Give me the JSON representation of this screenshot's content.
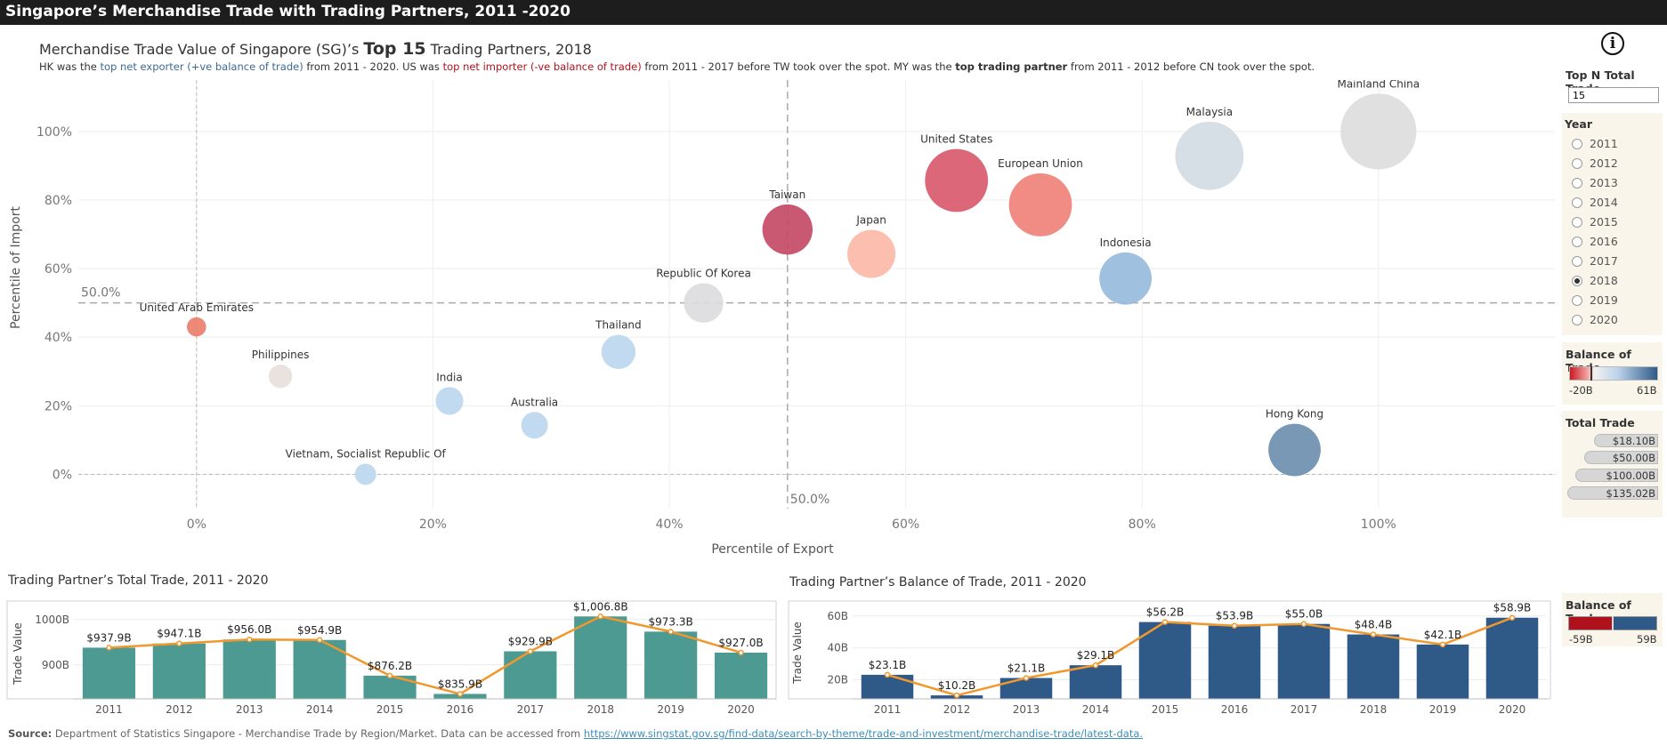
{
  "header": {
    "title": "Singapore’s Merchandise Trade with Trading Partners, 2011 -2020"
  },
  "main": {
    "title_prefix": "Merchandise Trade Value of Singapore (SG)’s ",
    "title_bold": "Top 15",
    "title_suffix": " Trading Partners, 2018",
    "subtitle_1": "HK was the ",
    "subtitle_2": "top net exporter (+ve balance of trade)",
    "subtitle_3": " from 2011 - 2020. US was ",
    "subtitle_4": "top net importer (-ve balance of trade)",
    "subtitle_5": " from 2011 - 2017 before TW took over the spot. MY was the ",
    "subtitle_6": "top trading partner",
    "subtitle_7": " from 2011 - 2012 before CN took over the spot."
  },
  "info_icon": "i",
  "controls": {
    "topn_label": "Top N Total Trade",
    "topn_value": "15",
    "year_label": "Year",
    "years": [
      "2011",
      "2012",
      "2013",
      "2014",
      "2015",
      "2016",
      "2017",
      "2018",
      "2019",
      "2020"
    ],
    "selected_year": "2018",
    "bot_legend_label": "Balance of Trade",
    "bot_min": "-20B",
    "bot_max": "61B",
    "total_trade_label": "Total Trade",
    "total_trade_sizes": [
      "$18.10B",
      "$50.00B",
      "$100.00B",
      "$135.02B"
    ],
    "bot2_label": "Balance of Trade",
    "bot2_min": "-59B",
    "bot2_max": "59B"
  },
  "colors": {
    "accent_line": "#f0982d",
    "teal_bar": "#4c9a91",
    "navy_bar": "#2f5a88"
  },
  "chart_data": [
    {
      "type": "scatter",
      "title": "",
      "xlabel": "Percentile of Export",
      "ylabel": "Percentile of Import",
      "xlim": [
        -0.1,
        1.15
      ],
      "ylim": [
        -0.1,
        1.15
      ],
      "xticks": [
        "0%",
        "20%",
        "40%",
        "60%",
        "80%",
        "100%"
      ],
      "yticks": [
        "0%",
        "20%",
        "40%",
        "60%",
        "80%",
        "100%"
      ],
      "ref_x_label": "50.0%",
      "ref_y_label": "50.0%",
      "points": [
        {
          "label": "United Arab Emirates",
          "x": 0.0,
          "y": 0.43,
          "size": 18,
          "color": "#eb7f6c"
        },
        {
          "label": "Philippines",
          "x": 0.071,
          "y": 0.286,
          "size": 22,
          "color": "#e7dfdc"
        },
        {
          "label": "India",
          "x": 0.214,
          "y": 0.214,
          "size": 26,
          "color": "#bcd7ee"
        },
        {
          "label": "Australia",
          "x": 0.286,
          "y": 0.143,
          "size": 25,
          "color": "#bcd7ee"
        },
        {
          "label": "Vietnam, Socialist Republic Of",
          "x": 0.143,
          "y": 0.0,
          "size": 20,
          "color": "#bcd7ee"
        },
        {
          "label": "Thailand",
          "x": 0.357,
          "y": 0.357,
          "size": 32,
          "color": "#bcd7ee"
        },
        {
          "label": "Republic Of Korea",
          "x": 0.429,
          "y": 0.5,
          "size": 37,
          "color": "#dcdcdf"
        },
        {
          "label": "Taiwan",
          "x": 0.5,
          "y": 0.714,
          "size": 47,
          "color": "#c44a66"
        },
        {
          "label": "Japan",
          "x": 0.571,
          "y": 0.643,
          "size": 45,
          "color": "#fbb8a8"
        },
        {
          "label": "United States",
          "x": 0.643,
          "y": 0.857,
          "size": 59,
          "color": "#d95a6c"
        },
        {
          "label": "European Union",
          "x": 0.714,
          "y": 0.786,
          "size": 59,
          "color": "#ef8278"
        },
        {
          "label": "Indonesia",
          "x": 0.786,
          "y": 0.571,
          "size": 49,
          "color": "#97bcdc"
        },
        {
          "label": "Malaysia",
          "x": 0.857,
          "y": 0.929,
          "size": 64,
          "color": "#d4dce4"
        },
        {
          "label": "Mainland China",
          "x": 1.0,
          "y": 1.0,
          "size": 71,
          "color": "#dedddd"
        },
        {
          "label": "Hong Kong",
          "x": 0.929,
          "y": 0.071,
          "size": 49,
          "color": "#6c8fb0"
        }
      ]
    },
    {
      "type": "bar",
      "title": "Trading Partner’s Total Trade, 2011 - 2020",
      "ylabel": "Trade Value",
      "categories": [
        "2011",
        "2012",
        "2013",
        "2014",
        "2015",
        "2016",
        "2017",
        "2018",
        "2019",
        "2020"
      ],
      "values": [
        937.9,
        947.1,
        956.0,
        954.9,
        876.2,
        835.9,
        929.9,
        1006.8,
        973.3,
        927.0
      ],
      "labels": [
        "$937.9B",
        "$947.1B",
        "$956.0B",
        "$954.9B",
        "$876.2B",
        "$835.9B",
        "$929.9B",
        "$1,006.8B",
        "$973.3B",
        "$927.0B"
      ],
      "ylim": [
        825,
        1025
      ],
      "yticks": [
        {
          "v": 900,
          "t": "900B"
        },
        {
          "v": 1000,
          "t": "1000B"
        }
      ]
    },
    {
      "type": "bar",
      "title": "Trading Partner’s Balance of Trade, 2011 - 2020",
      "ylabel": "Trade Value",
      "categories": [
        "2011",
        "2012",
        "2013",
        "2014",
        "2015",
        "2016",
        "2017",
        "2018",
        "2019",
        "2020"
      ],
      "values": [
        23.1,
        10.2,
        21.1,
        29.1,
        56.2,
        53.9,
        55.0,
        48.4,
        42.1,
        58.9
      ],
      "labels": [
        "$23.1B",
        "$10.2B",
        "$21.1B",
        "$29.1B",
        "$56.2B",
        "$53.9B",
        "$55.0B",
        "$48.4B",
        "$42.1B",
        "$58.9B"
      ],
      "ylim": [
        8,
        66
      ],
      "yticks": [
        {
          "v": 20,
          "t": "20B"
        },
        {
          "v": 40,
          "t": "40B"
        },
        {
          "v": 60,
          "t": "60B"
        }
      ]
    }
  ],
  "source": {
    "label": "Source:",
    "text": " Department of Statistics Singapore - Merchandise Trade by Region/Market. Data can be accessed from ",
    "link": "https://www.singstat.gov.sg/find-data/search-by-theme/trade-and-investment/merchandise-trade/latest-data."
  }
}
